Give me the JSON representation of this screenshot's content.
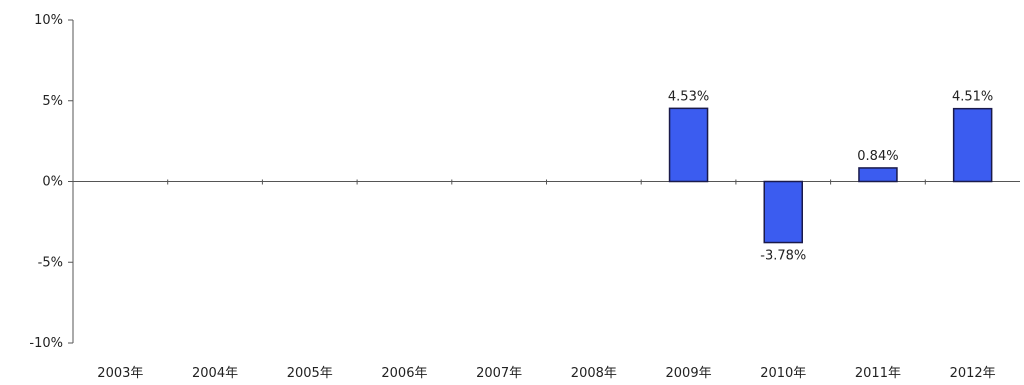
{
  "chart_data": {
    "type": "bar",
    "categories": [
      "2003年",
      "2004年",
      "2005年",
      "2006年",
      "2007年",
      "2008年",
      "2009年",
      "2010年",
      "2011年",
      "2012年"
    ],
    "values": [
      null,
      null,
      null,
      null,
      null,
      null,
      4.53,
      -3.78,
      0.84,
      4.51
    ],
    "data_labels": [
      "",
      "",
      "",
      "",
      "",
      "",
      "4.53%",
      "-3.78%",
      "0.84%",
      "4.51%"
    ],
    "ylim": [
      -10,
      10
    ],
    "yticks": [
      10,
      5,
      0,
      -5,
      -10
    ],
    "ytick_labels": [
      "10%",
      "5%",
      "0%",
      "-5%",
      "-10%"
    ],
    "title": "",
    "xlabel": "",
    "ylabel": "",
    "grid": false,
    "bar_color": "#3b5cf0",
    "bar_outline_color": "#1a1a4a"
  }
}
